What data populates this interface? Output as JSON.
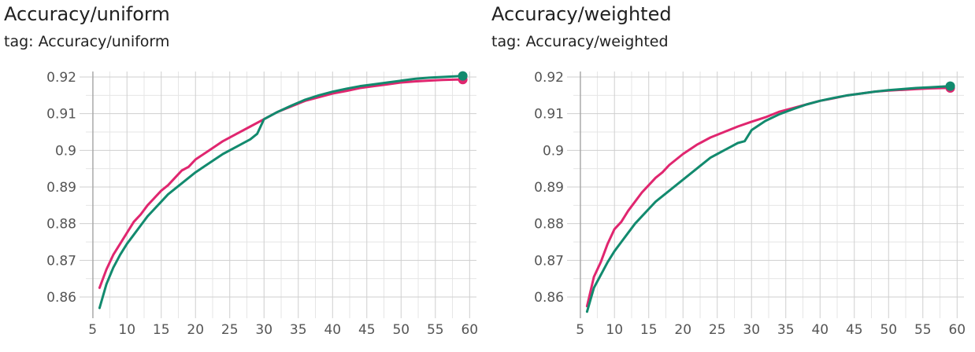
{
  "colors": {
    "series_a": "#e0266f",
    "series_b": "#128a6e",
    "grid": "#cfcfcf",
    "axis": "#9e9e9e",
    "text": "#555555"
  },
  "panels": [
    {
      "title": "Accuracy/uniform",
      "tag": "tag: Accuracy/uniform"
    },
    {
      "title": "Accuracy/weighted",
      "tag": "tag: Accuracy/weighted"
    }
  ],
  "chart_data": [
    {
      "type": "line",
      "title": "Accuracy/uniform",
      "xlim": [
        4,
        61
      ],
      "ylim": [
        0.8555,
        0.9215
      ],
      "xticks": [
        5,
        10,
        15,
        20,
        25,
        30,
        35,
        40,
        45,
        50,
        55,
        60
      ],
      "yticks": [
        0.86,
        0.87,
        0.88,
        0.89,
        0.9,
        0.91,
        0.92
      ],
      "ytick_labels": [
        "0.86",
        "0.87",
        "0.88",
        "0.89",
        "0.9",
        "0.91",
        "0.92"
      ],
      "grid": true,
      "series": [
        {
          "color": "#e0266f",
          "x": [
            6,
            7,
            8,
            9,
            10,
            11,
            12,
            13,
            14,
            15,
            16,
            17,
            18,
            19,
            20,
            22,
            24,
            26,
            28,
            30,
            32,
            34,
            36,
            38,
            40,
            42,
            44,
            46,
            48,
            50,
            52,
            54,
            56,
            58,
            59
          ],
          "y": [
            0.8625,
            0.8675,
            0.8715,
            0.8745,
            0.8775,
            0.8805,
            0.8825,
            0.885,
            0.887,
            0.889,
            0.8905,
            0.8925,
            0.8945,
            0.8955,
            0.8975,
            0.9,
            0.9025,
            0.9045,
            0.9065,
            0.9085,
            0.9105,
            0.912,
            0.9135,
            0.9145,
            0.9155,
            0.9162,
            0.917,
            0.9175,
            0.918,
            0.9185,
            0.9188,
            0.919,
            0.9192,
            0.9193,
            0.9193
          ]
        },
        {
          "color": "#128a6e",
          "x": [
            6,
            7,
            8,
            9,
            10,
            11,
            12,
            13,
            14,
            15,
            16,
            17,
            18,
            20,
            22,
            24,
            26,
            28,
            29,
            30,
            32,
            34,
            36,
            38,
            40,
            42,
            44,
            46,
            48,
            50,
            52,
            54,
            56,
            58,
            59
          ],
          "y": [
            0.857,
            0.8635,
            0.868,
            0.8715,
            0.8745,
            0.877,
            0.8795,
            0.882,
            0.884,
            0.886,
            0.888,
            0.8895,
            0.891,
            0.894,
            0.8965,
            0.899,
            0.901,
            0.903,
            0.9045,
            0.9085,
            0.9105,
            0.9122,
            0.9138,
            0.915,
            0.916,
            0.9168,
            0.9175,
            0.918,
            0.9185,
            0.919,
            0.9195,
            0.9198,
            0.92,
            0.9202,
            0.9203
          ]
        }
      ]
    },
    {
      "type": "line",
      "title": "Accuracy/weighted",
      "xlim": [
        4,
        61
      ],
      "ylim": [
        0.8555,
        0.9215
      ],
      "xticks": [
        5,
        10,
        15,
        20,
        25,
        30,
        35,
        40,
        45,
        50,
        55,
        60
      ],
      "yticks": [
        0.86,
        0.87,
        0.88,
        0.89,
        0.9,
        0.91,
        0.92
      ],
      "ytick_labels": [
        "0.86",
        "0.87",
        "0.88",
        "0.89",
        "0.9",
        "0.91",
        "0.92"
      ],
      "grid": true,
      "series": [
        {
          "color": "#e0266f",
          "x": [
            6,
            7,
            8,
            9,
            10,
            11,
            12,
            13,
            14,
            15,
            16,
            17,
            18,
            19,
            20,
            22,
            24,
            26,
            28,
            30,
            32,
            34,
            36,
            38,
            40,
            42,
            44,
            46,
            48,
            50,
            52,
            54,
            56,
            58,
            59
          ],
          "y": [
            0.8575,
            0.8655,
            0.8695,
            0.8745,
            0.8785,
            0.8805,
            0.8835,
            0.886,
            0.8885,
            0.8905,
            0.8925,
            0.894,
            0.896,
            0.8975,
            0.899,
            0.9015,
            0.9035,
            0.905,
            0.9065,
            0.9078,
            0.909,
            0.9105,
            0.9115,
            0.9125,
            0.9135,
            0.9142,
            0.915,
            0.9155,
            0.916,
            0.9163,
            0.9165,
            0.9167,
            0.9169,
            0.917,
            0.917
          ]
        },
        {
          "color": "#128a6e",
          "x": [
            6,
            7,
            8,
            9,
            10,
            11,
            12,
            13,
            14,
            15,
            16,
            17,
            18,
            19,
            20,
            21,
            22,
            23,
            24,
            25,
            26,
            27,
            28,
            29,
            30,
            32,
            34,
            36,
            38,
            40,
            42,
            44,
            46,
            48,
            50,
            52,
            54,
            56,
            58,
            59
          ],
          "y": [
            0.856,
            0.8625,
            0.866,
            0.8695,
            0.8725,
            0.875,
            0.8775,
            0.88,
            0.882,
            0.884,
            0.886,
            0.8875,
            0.889,
            0.8905,
            0.892,
            0.8935,
            0.895,
            0.8965,
            0.898,
            0.899,
            0.9,
            0.901,
            0.902,
            0.9025,
            0.9055,
            0.908,
            0.9098,
            0.9112,
            0.9125,
            0.9135,
            0.9143,
            0.915,
            0.9155,
            0.916,
            0.9164,
            0.9167,
            0.917,
            0.9172,
            0.9174,
            0.9175
          ]
        }
      ]
    }
  ]
}
